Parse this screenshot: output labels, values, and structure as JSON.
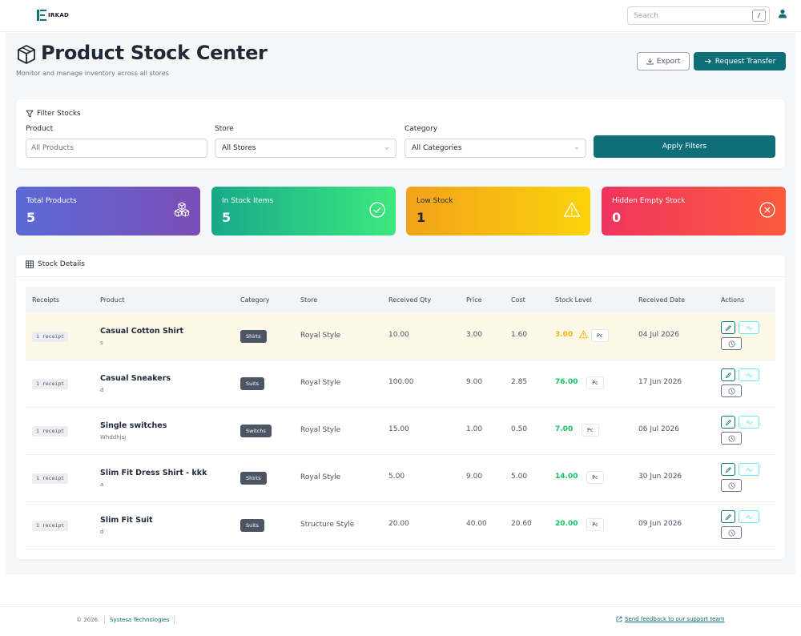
{
  "brand": {
    "name": "IRKAD"
  },
  "search": {
    "placeholder": "Search",
    "shortcut": "/"
  },
  "header": {
    "title": "Product Stock Center",
    "subtitle": "Monitor and manage inventory across all stores",
    "export_label": "Export",
    "transfer_label": "Request Transfer"
  },
  "filters": {
    "title": "Filter Stocks",
    "product_label": "Product",
    "product_placeholder": "All Products",
    "store_label": "Store",
    "store_value": "All Stores",
    "category_label": "Category",
    "category_value": "All Categories",
    "apply_label": "Apply Filters"
  },
  "stats": [
    {
      "label": "Total Products",
      "value": "5",
      "icon": "cubes-icon",
      "colors": [
        "#5b6ad6",
        "#7b4db6"
      ]
    },
    {
      "label": "In Stock Items",
      "value": "5",
      "icon": "check-circle-icon",
      "colors": [
        "#17a98a",
        "#3ee87f"
      ]
    },
    {
      "label": "Low Stock",
      "value": "1",
      "icon": "warning-icon",
      "colors": [
        "#f2a21a",
        "#fbd30b"
      ]
    },
    {
      "label": "Hidden Empty Stock",
      "value": "0",
      "icon": "x-circle-icon",
      "colors": [
        "#f0345f",
        "#fb5b3c"
      ]
    }
  ],
  "table": {
    "title": "Stock Details",
    "columns": [
      "Receipts",
      "Product",
      "Category",
      "Store",
      "Received Qty",
      "Price",
      "Cost",
      "Stock Level",
      "Received Date",
      "Actions"
    ],
    "rows": [
      {
        "receipt": "1 receipt",
        "product": "Casual Cotton Shirt",
        "sku": "s",
        "category": "Shirts",
        "store": "Royal Style",
        "qty": "10.00",
        "price": "3.00",
        "cost": "1.60",
        "level": "3.00",
        "unit": "Pc",
        "low": true,
        "date": "04 Jul 2026"
      },
      {
        "receipt": "1 receipt",
        "product": "Casual Sneakers",
        "sku": "d",
        "category": "Suits",
        "store": "Royal Style",
        "qty": "100.00",
        "price": "9.00",
        "cost": "2.85",
        "level": "76.00",
        "unit": "Pc",
        "low": false,
        "date": "17 Jun 2026"
      },
      {
        "receipt": "1 receipt",
        "product": "Single switches",
        "sku": "Whddhjsj",
        "category": "Switchs",
        "store": "Royal Style",
        "qty": "15.00",
        "price": "1.00",
        "cost": "0.50",
        "level": "7.00",
        "unit": "Pc",
        "low": false,
        "date": "06 Jul 2026"
      },
      {
        "receipt": "1 receipt",
        "product": "Slim Fit Dress Shirt - kkk",
        "sku": "a",
        "category": "Shirts",
        "store": "Royal Style",
        "qty": "5.00",
        "price": "9.00",
        "cost": "5.00",
        "level": "14.00",
        "unit": "Pc",
        "low": false,
        "date": "30 Jun 2026"
      },
      {
        "receipt": "1 receipt",
        "product": "Slim Fit Suit",
        "sku": "d",
        "category": "Suits",
        "store": "Structure Style",
        "qty": "20.00",
        "price": "40.00",
        "cost": "20.60",
        "level": "20.00",
        "unit": "Pc",
        "low": false,
        "date": "09 Jun 2026"
      }
    ]
  },
  "colors": {
    "primary": "#0f6f78",
    "ok": "#10c46a",
    "low": "#f2b705",
    "highlight": "#fdf8e8"
  },
  "footer": {
    "copyright": "© 2026.",
    "company": "Systesa Technologies",
    "feedback": "Send feedback to our support team"
  }
}
